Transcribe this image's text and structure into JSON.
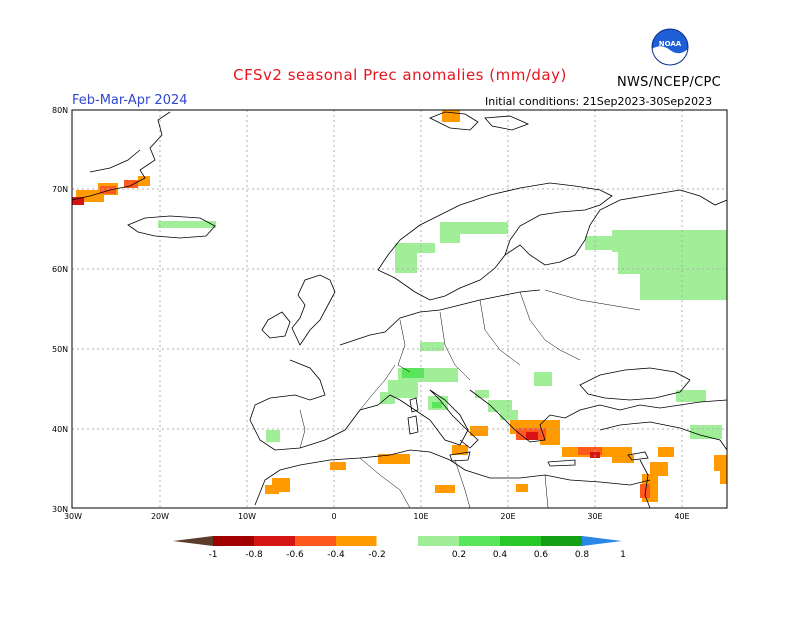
{
  "header": {
    "title": "CFSv2 seasonal Prec anomalies (mm/day)",
    "period": "Feb-Mar-Apr 2024",
    "initial_conditions": "Initial conditions: 21Sep2023-30Sep2023",
    "agency": "NWS/NCEP/CPC",
    "logo_text": "NOAA"
  },
  "map": {
    "lon_ticks": [
      "30W",
      "20W",
      "10W",
      "0",
      "10E",
      "20E",
      "30E",
      "40E"
    ],
    "lat_ticks": [
      "80N",
      "70N",
      "60N",
      "50N",
      "40N",
      "30N"
    ]
  },
  "colorbar": {
    "labels": [
      "-1",
      "-0.8",
      "-0.6",
      "-0.4",
      "-0.2",
      "0.2",
      "0.4",
      "0.6",
      "0.8",
      "1"
    ],
    "colors": [
      "#5b3b2a",
      "#a00000",
      "#d51414",
      "#ff5a1e",
      "#ff9a00",
      "#ffffff",
      "#a0ee98",
      "#5ae65a",
      "#28c828",
      "#14a014",
      "#2c88e8"
    ]
  }
}
